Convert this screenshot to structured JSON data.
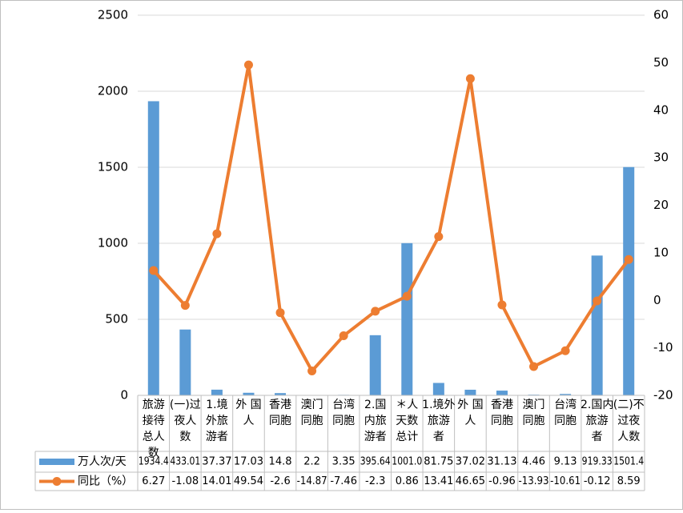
{
  "colors": {
    "bar": "#5B9BD5",
    "line": "#ED7D31",
    "grid": "#D9D9D9",
    "border": "#BFBFBF",
    "text": "#000000"
  },
  "chart_data": {
    "type": "bar+line",
    "categories": [
      [
        "旅游",
        "接待",
        "总人",
        "数"
      ],
      [
        "(一)过",
        "夜人",
        "数"
      ],
      [
        "1.境",
        "外旅",
        "游者"
      ],
      [
        "外 国",
        "人"
      ],
      [
        "香港",
        "同胞"
      ],
      [
        "澳门",
        "同胞"
      ],
      [
        "台湾",
        "同胞"
      ],
      [
        "2.国",
        "内旅",
        "游者"
      ],
      [
        "＊人",
        "天数",
        "总计"
      ],
      [
        "1.境外",
        "旅游",
        "者"
      ],
      [
        "外 国",
        "人"
      ],
      [
        "香港",
        "同胞"
      ],
      [
        "澳门",
        "同胞"
      ],
      [
        "台湾",
        "同胞"
      ],
      [
        "2.国内",
        "旅游",
        "者"
      ],
      [
        "(二)不",
        "过夜",
        "人数"
      ]
    ],
    "series": [
      {
        "name": "万人次/天",
        "type": "bar",
        "axis": "left",
        "values": [
          1934.4,
          433.01,
          37.37,
          17.03,
          14.8,
          2.2,
          3.35,
          395.64,
          1001.0,
          81.75,
          37.02,
          31.13,
          4.46,
          9.13,
          919.33,
          1501.4
        ],
        "labels": [
          "1934.4",
          "433.01",
          "37.37",
          "17.03",
          "14.8",
          "2.2",
          "3.35",
          "395.64",
          "1001.0",
          "81.75",
          "37.02",
          "31.13",
          "4.46",
          "9.13",
          "919.33",
          "1501.4"
        ]
      },
      {
        "name": "同比（%）",
        "type": "line",
        "axis": "right",
        "values": [
          6.27,
          -1.08,
          14.01,
          49.54,
          -2.6,
          -14.87,
          -7.46,
          -2.3,
          0.86,
          13.41,
          46.65,
          -0.96,
          -13.93,
          -10.61,
          -0.12,
          8.59
        ],
        "labels": [
          "6.27",
          "-1.08",
          "14.01",
          "49.54",
          "-2.6",
          "-14.87",
          "-7.46",
          "-2.3",
          "0.86",
          "13.41",
          "46.65",
          "-0.96",
          "-13.93",
          "-10.61",
          "-0.12",
          "8.59"
        ]
      }
    ],
    "y_left": {
      "min": 0,
      "max": 2500,
      "ticks": [
        "0",
        "500",
        "1000",
        "1500",
        "2000",
        "2500"
      ]
    },
    "y_right": {
      "min": -20,
      "max": 60,
      "ticks": [
        "-20",
        "-10",
        "0",
        "10",
        "20",
        "30",
        "40",
        "50",
        "60"
      ]
    },
    "grid": true,
    "data_table": true
  }
}
